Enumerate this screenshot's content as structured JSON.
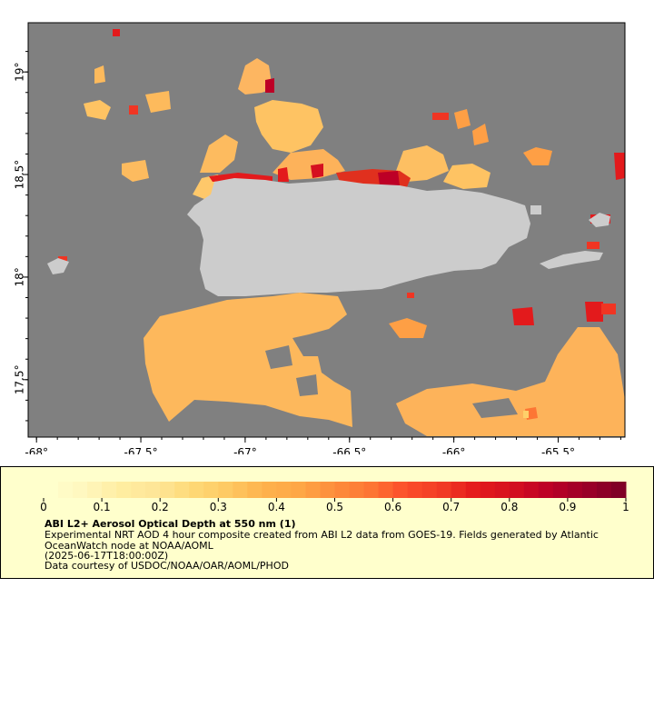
{
  "map": {
    "x_axis": {
      "ticks": [
        {
          "value": -68,
          "label": "-68°"
        },
        {
          "value": -67.5,
          "label": "-67.5°"
        },
        {
          "value": -67,
          "label": "-67°"
        },
        {
          "value": -66.5,
          "label": "-66.5°"
        },
        {
          "value": -66,
          "label": "-66°"
        },
        {
          "value": -65.5,
          "label": "-65.5°"
        }
      ]
    },
    "y_axis": {
      "ticks": [
        {
          "value": 19,
          "label": "19°"
        },
        {
          "value": 18.5,
          "label": "18.5°"
        },
        {
          "value": 18,
          "label": "18°"
        },
        {
          "value": 17.5,
          "label": "17.5°"
        }
      ]
    },
    "lon_range": [
      -68.04,
      -65.18
    ],
    "lat_range": [
      17.22,
      19.24
    ],
    "colors": {
      "ocean": "#808080",
      "land": "#cccccc",
      "frame": "#000000"
    }
  },
  "legend": {
    "ticks": [
      "0",
      "0.1",
      "0.2",
      "0.3",
      "0.4",
      "0.5",
      "0.6",
      "0.7",
      "0.8",
      "0.9",
      "1"
    ],
    "title": "ABI L2+ Aerosol Optical Depth at 550 nm (1)",
    "description": "Experimental NRT AOD 4 hour composite created from ABI L2 data from GOES-19. Fields generated by Atlantic OceanWatch node at NOAA/AOML",
    "time": "(2025-06-17T18:00:00Z)",
    "credit": "Data courtesy of USDOC/NOAA/OAR/AOML/PHOD",
    "colorscale": [
      "#ffffcc",
      "#fff6bd",
      "#ffeda0",
      "#fee597",
      "#fed976",
      "#fec963",
      "#feb24c",
      "#fea746",
      "#fd8d3c",
      "#fd7634",
      "#fc4e2a",
      "#f23c26",
      "#e31a1c",
      "#d51020",
      "#bd0026",
      "#9e0029",
      "#800026"
    ]
  }
}
